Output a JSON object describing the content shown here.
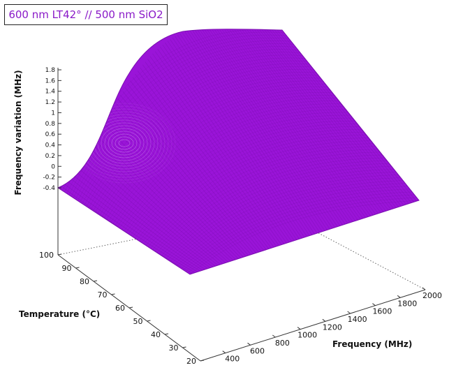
{
  "chart_data": {
    "type": "surface",
    "title": "600 nm LT42° // 500 nm SiO2",
    "xlabel": "Frequency (MHz)",
    "ylabel": "Temperature (°C)",
    "zlabel": "Frequency variation (MHz)",
    "x_ticks": [
      400,
      600,
      800,
      1000,
      1200,
      1400,
      1600,
      1800,
      2000
    ],
    "y_ticks": [
      20,
      30,
      40,
      50,
      60,
      70,
      80,
      90,
      100
    ],
    "z_ticks": [
      "1.8",
      "1.6",
      "1.4",
      "1.2",
      "1",
      "0.8",
      "0.6",
      "0.4",
      "0.2",
      "0",
      "-0.2",
      "-0.4"
    ],
    "xlim": [
      200,
      2000
    ],
    "ylim": [
      20,
      100
    ],
    "zlim": [
      -0.4,
      1.8
    ],
    "surface_color": "#9a14d8",
    "mesh_color": "#7a0fb0",
    "grid": false,
    "surface_samples": [
      {
        "x": 200,
        "temperature": 20,
        "z": -0.4
      },
      {
        "x": 200,
        "temperature": 100,
        "z": 1.8
      },
      {
        "x": 2000,
        "temperature": 100,
        "z": -0.4
      },
      {
        "x": 2000,
        "temperature": 20,
        "z": -0.4
      }
    ]
  }
}
